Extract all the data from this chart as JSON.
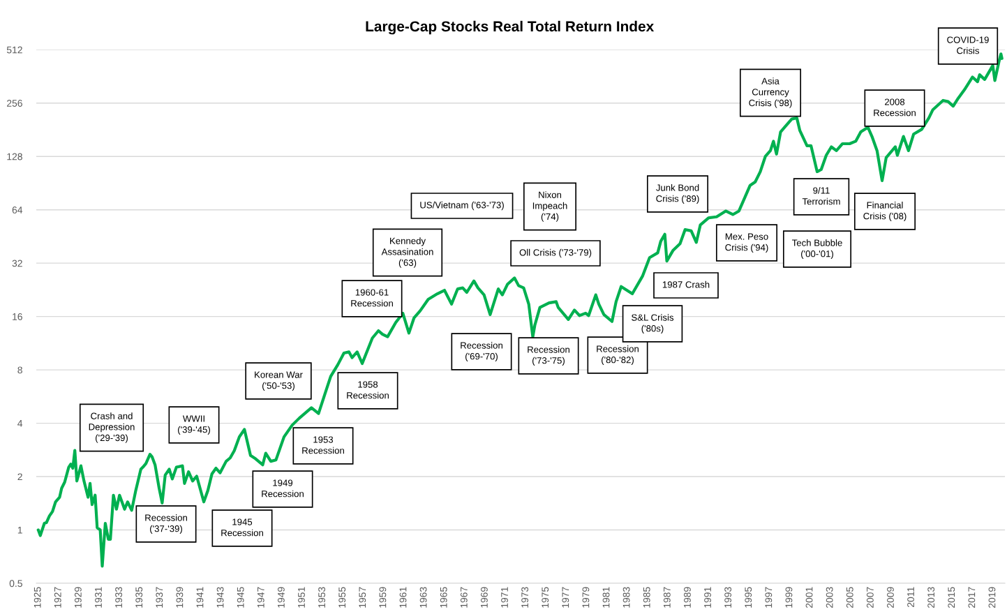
{
  "chart_data": {
    "type": "line",
    "title": "Large-Cap Stocks Real Total Return Index",
    "x": [
      1925.0,
      1925.2,
      1925.6,
      1925.8,
      1926.1,
      1926.4,
      1926.7,
      1927.1,
      1927.3,
      1927.6,
      1928.0,
      1928.2,
      1928.4,
      1928.6,
      1928.8,
      1929.2,
      1929.5,
      1929.9,
      1930.1,
      1930.3,
      1930.6,
      1930.8,
      1931.1,
      1931.3,
      1931.6,
      1931.9,
      1932.1,
      1932.4,
      1932.7,
      1933.0,
      1933.5,
      1933.8,
      1934.2,
      1934.6,
      1935.1,
      1935.3,
      1935.6,
      1936.0,
      1936.2,
      1936.5,
      1936.9,
      1937.2,
      1937.5,
      1937.9,
      1938.2,
      1938.6,
      1939.2,
      1939.4,
      1939.8,
      1940.2,
      1940.6,
      1941.3,
      1941.7,
      1942.1,
      1942.5,
      1942.9,
      1943.5,
      1943.9,
      1944.3,
      1944.8,
      1945.3,
      1945.9,
      1946.4,
      1947.1,
      1947.4,
      1947.9,
      1948.4,
      1949.2,
      1950.0,
      1950.7,
      1951.9,
      1952.6,
      1953.2,
      1953.8,
      1954.5,
      1955.1,
      1955.6,
      1955.9,
      1956.4,
      1956.9,
      1957.9,
      1958.5,
      1958.9,
      1959.4,
      1960.2,
      1960.9,
      1961.5,
      1962.0,
      1962.6,
      1963.4,
      1964.3,
      1965.0,
      1965.7,
      1966.3,
      1966.8,
      1967.2,
      1967.9,
      1968.3,
      1968.9,
      1969.5,
      1970.3,
      1970.7,
      1971.2,
      1971.9,
      1972.3,
      1972.8,
      1973.3,
      1973.7,
      1973.9,
      1974.4,
      1975.3,
      1976.0,
      1976.2,
      1977.2,
      1977.8,
      1978.3,
      1978.9,
      1979.2,
      1979.9,
      1980.2,
      1980.7,
      1981.5,
      1981.9,
      1982.4,
      1983.5,
      1984.5,
      1985.2,
      1986.0,
      1986.3,
      1986.7,
      1986.9,
      1987.5,
      1988.2,
      1988.7,
      1989.3,
      1989.8,
      1990.2,
      1991.0,
      1991.8,
      1992.7,
      1993.4,
      1994.0,
      1994.6,
      1995.1,
      1995.6,
      1996.1,
      1996.6,
      1997.1,
      1997.4,
      1997.7,
      1998.1,
      1998.6,
      1999.2,
      1999.7,
      2000.0,
      2000.7,
      2001.1,
      2001.7,
      2002.1,
      2002.6,
      2003.1,
      2003.6,
      2004.2,
      2004.9,
      2005.5,
      2006.0,
      2006.7,
      2007.1,
      2007.6,
      2008.1,
      2008.5,
      2009.4,
      2009.6,
      2010.2,
      2010.7,
      2011.2,
      2012.0,
      2012.7,
      2013.1,
      2014.1,
      2014.6,
      2015.1,
      2015.6,
      2016.2,
      2017.0,
      2017.5,
      2017.7,
      2018.2,
      2019.0,
      2019.2,
      2019.6,
      2019.8,
      2019.9
    ],
    "series": [
      {
        "color": "#00b050",
        "values": [
          1.0,
          0.93,
          1.09,
          1.1,
          1.2,
          1.27,
          1.44,
          1.53,
          1.72,
          1.86,
          2.26,
          2.35,
          2.23,
          2.81,
          1.89,
          2.3,
          1.89,
          1.53,
          1.83,
          1.39,
          1.57,
          1.03,
          1.0,
          0.625,
          1.09,
          0.886,
          0.886,
          1.57,
          1.31,
          1.57,
          1.31,
          1.44,
          1.29,
          1.67,
          2.2,
          2.26,
          2.37,
          2.67,
          2.59,
          2.33,
          1.72,
          1.42,
          2.04,
          2.2,
          1.94,
          2.26,
          2.3,
          1.83,
          2.13,
          1.89,
          2.01,
          1.44,
          1.67,
          2.07,
          2.23,
          2.1,
          2.44,
          2.55,
          2.8,
          3.35,
          3.69,
          2.63,
          2.52,
          2.33,
          2.71,
          2.44,
          2.48,
          3.35,
          3.9,
          4.27,
          4.89,
          4.54,
          5.78,
          7.36,
          8.56,
          9.95,
          10.1,
          9.38,
          10.1,
          8.69,
          12.1,
          13.3,
          12.7,
          12.3,
          14.8,
          16.7,
          12.9,
          15.7,
          17.2,
          20.0,
          21.5,
          22.5,
          18.8,
          22.9,
          23.2,
          21.9,
          25.4,
          23.2,
          21.2,
          16.4,
          22.9,
          21.2,
          24.3,
          26.4,
          23.9,
          23.2,
          18.8,
          12.3,
          14.3,
          18.0,
          19.1,
          19.4,
          18.0,
          15.4,
          17.4,
          16.2,
          16.7,
          16.2,
          21.2,
          18.8,
          16.4,
          15.0,
          19.4,
          23.6,
          21.5,
          27.0,
          34.4,
          36.6,
          42.5,
          46.6,
          32.9,
          37.7,
          41.2,
          49.5,
          48.7,
          41.9,
          52.6,
          57.6,
          58.4,
          63.0,
          60.2,
          63.0,
          75.6,
          87.9,
          91.9,
          105,
          128,
          138,
          156,
          132,
          176,
          190,
          208,
          211,
          179,
          147,
          147,
          105,
          108,
          130,
          145,
          138,
          151,
          151,
          156,
          176,
          187,
          166,
          138,
          93.4,
          126,
          145,
          130,
          166,
          138,
          171,
          182,
          211,
          235,
          265,
          261,
          246,
          273,
          304,
          359,
          338,
          370,
          348,
          417,
          343,
          437,
          485,
          457
        ]
      }
    ],
    "xlim": [
      1924.8,
      2020.2
    ],
    "xticks": [
      1925,
      1927,
      1929,
      1931,
      1933,
      1935,
      1937,
      1939,
      1941,
      1943,
      1945,
      1947,
      1949,
      1951,
      1953,
      1955,
      1957,
      1959,
      1961,
      1963,
      1965,
      1967,
      1969,
      1971,
      1973,
      1975,
      1977,
      1979,
      1981,
      1983,
      1985,
      1987,
      1989,
      1991,
      1993,
      1995,
      1997,
      1999,
      2001,
      2003,
      2005,
      2007,
      2009,
      2011,
      2013,
      2015,
      2017,
      2019
    ],
    "ylim": [
      0.5,
      512
    ],
    "yticks": [
      0.5,
      1,
      2,
      4,
      8,
      16,
      32,
      64,
      128,
      256,
      512
    ],
    "log": "y",
    "grid": "y",
    "annotations": [
      "Crash and\nDepression\n('29-'39)",
      "WWII\n('39-'45)",
      "Recession\n('37-'39)",
      "1945\nRecession",
      "1949\nRecession",
      "Korean War\n('50-'53)",
      "1953\nRecession",
      "1958\nRecession",
      "1960-61\nRecession",
      "Kennedy\nAssasination\n('63)",
      "US/Vietnam ('63-'73)",
      "Nixon\nImpeach\n('74)",
      "Oll Crisis ('73-'79)",
      "Recession\n('69-'70)",
      "Recession\n('73-'75)",
      "Recession\n('80-'82)",
      "S&L Crisis\n('80s)",
      "1987 Crash",
      "Junk Bond\nCrisis ('89)",
      "Mex. Peso\nCrisis ('94)",
      "Asia\nCurrency\nCrisis ('98)",
      "9/11\nTerrorism",
      "Tech Bubble\n('00-'01)",
      "Financial\nCrisis ('08)",
      "2008\nRecession",
      "COVID-19\nCrisis"
    ]
  }
}
